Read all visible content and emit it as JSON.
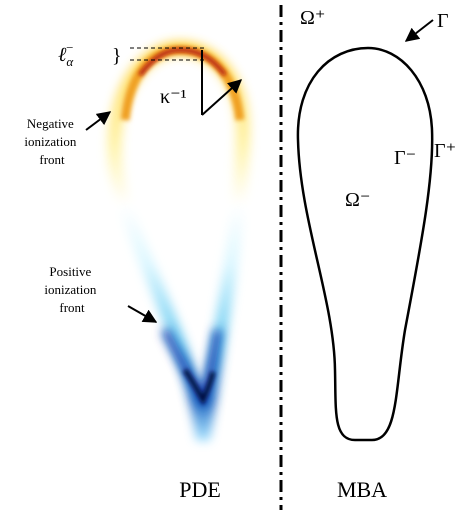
{
  "panels": {
    "left": {
      "label": "PDE"
    },
    "right": {
      "label": "MBA"
    }
  },
  "annotations": {
    "thickness": {
      "base": "ℓ",
      "sub": "α",
      "sup": "−",
      "brace": "}"
    },
    "curvature": "κ⁻¹",
    "negative_front": [
      "Negative",
      "ionization",
      "front"
    ],
    "positive_front": [
      "Positive",
      "ionization",
      "front"
    ]
  },
  "regions": {
    "outside": "Ω⁺",
    "inside": "Ω⁻"
  },
  "interface": {
    "name": "Γ",
    "inner": "Γ⁻",
    "outer": "Γ⁺"
  }
}
